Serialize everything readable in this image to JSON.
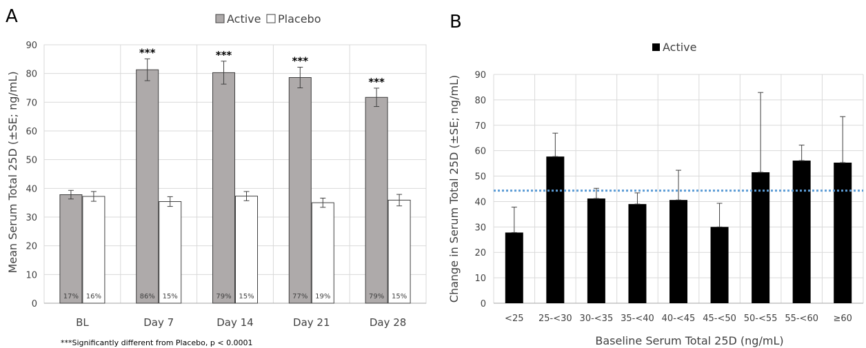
{
  "chart_data": [
    {
      "panel": "A",
      "type": "bar",
      "ylabel": "Mean Serum Total 25D (±SE; ng/mL)",
      "ylim": [
        0,
        90
      ],
      "yticks": [
        0,
        10,
        20,
        30,
        40,
        50,
        60,
        70,
        80,
        90
      ],
      "categories": [
        "BL",
        "Day 7",
        "Day 14",
        "Day 21",
        "Day 28"
      ],
      "grid": true,
      "legend_position": "top",
      "series": [
        {
          "name": "Active",
          "color": "#aeaaaa",
          "values": [
            37.8,
            81.3,
            80.3,
            78.6,
            71.7
          ],
          "errors": [
            1.5,
            3.8,
            4.0,
            3.6,
            3.2
          ],
          "bar_labels": [
            "17%",
            "86%",
            "79%",
            "77%",
            "79%"
          ],
          "significance": [
            "",
            "***",
            "***",
            "***",
            "***"
          ]
        },
        {
          "name": "Placebo",
          "color": "#ffffff",
          "values": [
            37.2,
            35.4,
            37.3,
            35.0,
            35.9
          ],
          "errors": [
            1.7,
            1.7,
            1.6,
            1.6,
            2.0
          ],
          "bar_labels": [
            "16%",
            "15%",
            "15%",
            "19%",
            "15%"
          ]
        }
      ],
      "footnote": "***Significantly different from Placebo, p < 0.0001"
    },
    {
      "panel": "B",
      "type": "bar",
      "xlabel": "Baseline Serum Total 25D (ng/mL)",
      "ylabel": "Change in Serum Total 25D (±SE; ng/mL)",
      "ylim": [
        0,
        90
      ],
      "yticks": [
        0,
        10,
        20,
        30,
        40,
        50,
        60,
        70,
        80,
        90
      ],
      "categories": [
        "<25",
        "25-<30",
        "30-<35",
        "35-<40",
        "40-<45",
        "45-<50",
        "50-<55",
        "55-<60",
        "≥60"
      ],
      "grid": true,
      "legend_position": "top",
      "reference_line": {
        "value": 44.3,
        "color": "#5b9bd5",
        "style": "dotted"
      },
      "series": [
        {
          "name": "Active",
          "color": "#000000",
          "values": [
            27.8,
            57.7,
            41.2,
            39.0,
            40.6,
            30.0,
            51.5,
            56.1,
            55.3
          ],
          "errors": [
            10.0,
            9.2,
            4.0,
            4.4,
            11.7,
            9.3,
            31.4,
            6.1,
            18.1
          ]
        }
      ]
    }
  ]
}
